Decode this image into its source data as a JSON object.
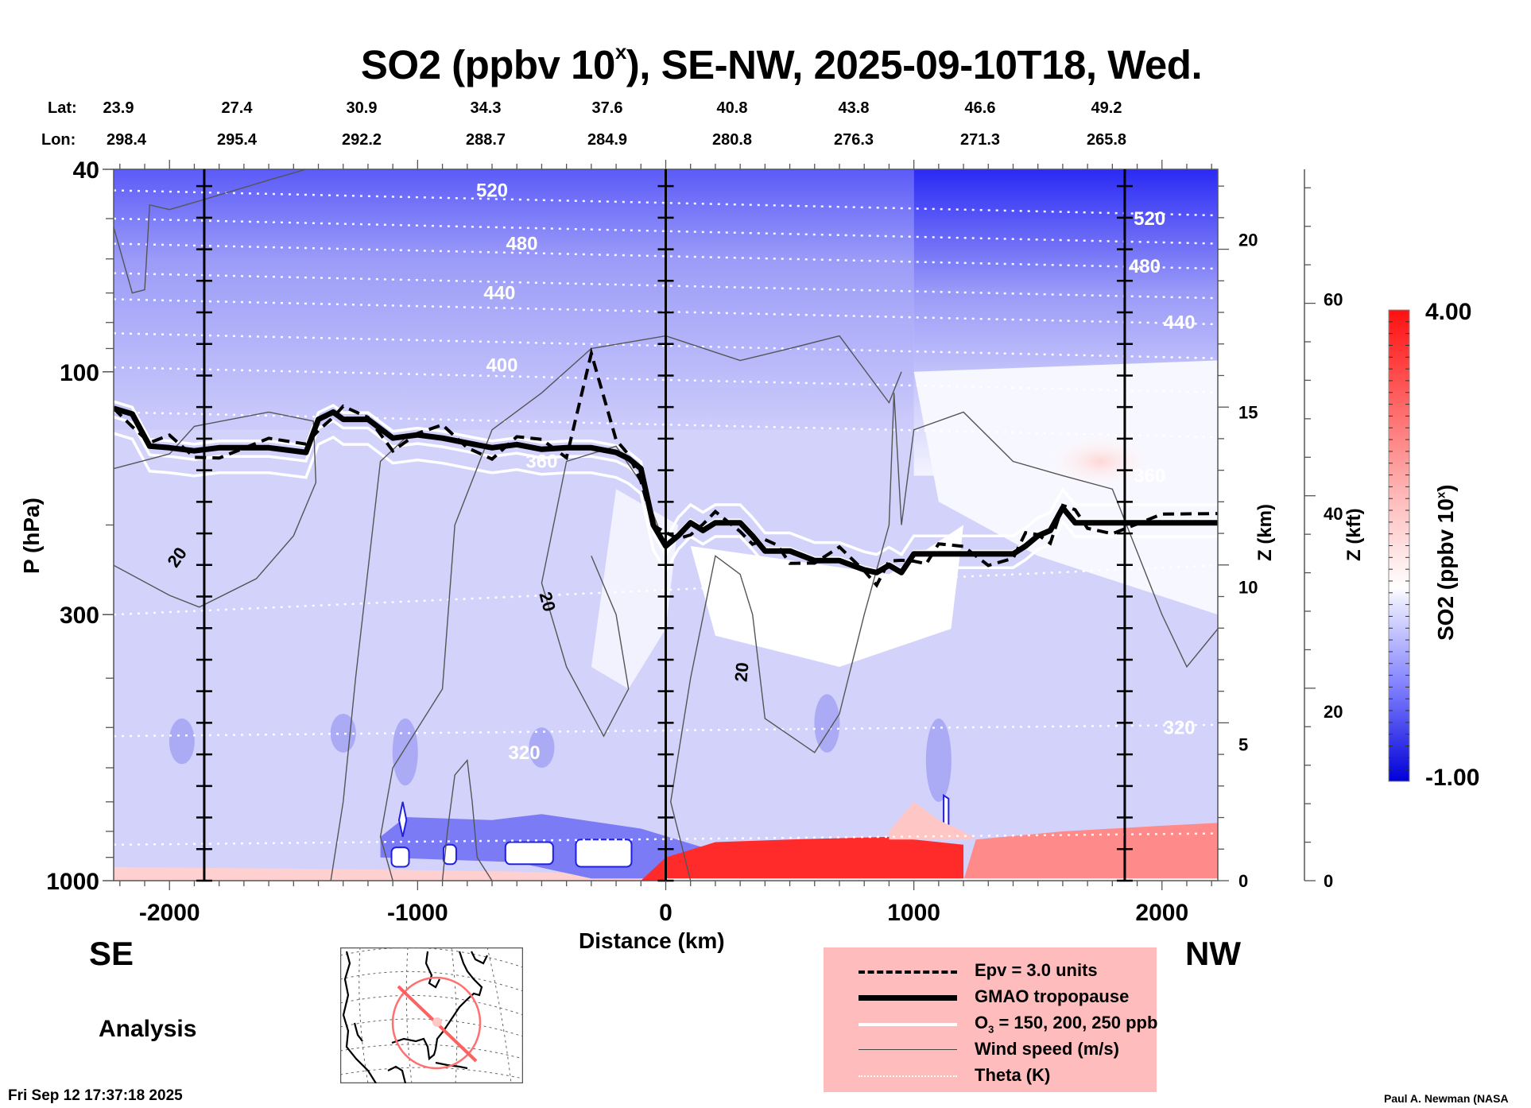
{
  "chart_data": {
    "type": "heatmap",
    "title": "SO2 (ppbv 10",
    "title_superscript": "x",
    "title_suffix": "), SE-NW, 2025-09-10T18, Wed.",
    "xlabel": "Distance (km)",
    "ylabel": "P (hPa)",
    "ylabel_right_km": "Z (km)",
    "ylabel_right_kft": "Z (kft)",
    "xlim": [
      -2225,
      2225
    ],
    "ylim_hpa": [
      1000,
      40
    ],
    "y_scale": "log",
    "x_ticks": [
      -2000,
      -1000,
      0,
      1000,
      2000
    ],
    "x_tick_labels": [
      "-2000",
      "-1000",
      "0",
      "1000",
      "2000"
    ],
    "y_ticks_hpa": [
      40,
      100,
      300,
      1000
    ],
    "y_tick_labels_hpa": [
      "40",
      "100",
      "300",
      "1000"
    ],
    "z_km_ticks": [
      0,
      5,
      10,
      15,
      20
    ],
    "z_km_tick_labels": [
      "0",
      "5",
      "10",
      "15",
      "20"
    ],
    "z_km_approx_hpa": {
      "0": 1000,
      "5": 540,
      "10": 265,
      "15": 120,
      "20": 55
    },
    "z_kft_ticks": [
      0,
      20,
      40,
      60
    ],
    "z_kft_tick_labels": [
      "0",
      "20",
      "40",
      "60"
    ],
    "z_kft_approx_hpa": {
      "0": 1000,
      "20": 465,
      "40": 190,
      "60": 72
    },
    "vertical_markers_km": [
      -1860,
      0,
      1850
    ],
    "lat_lon_header": {
      "lat_label": "Lat:",
      "lon_label": "Lon:",
      "lat": [
        "23.9",
        "27.4",
        "30.9",
        "34.3",
        "37.6",
        "40.8",
        "43.8",
        "46.6",
        "49.2"
      ],
      "lon": [
        "298.4",
        "295.4",
        "292.2",
        "288.7",
        "284.9",
        "280.8",
        "276.3",
        "271.3",
        "265.8"
      ]
    },
    "colorbar": {
      "label": "SO2 (ppbv 10",
      "label_superscript": "x",
      "label_suffix": ")",
      "min": -1.0,
      "max": 4.0,
      "min_label": "-1.00",
      "max_label": "4.00",
      "low_color": "#0000d8",
      "mid_color": "#ffffff",
      "high_color": "#ff0a0a",
      "levels": 40
    },
    "theta_labels_K": [
      {
        "value": "520",
        "x_km": -700,
        "p_hpa": 44
      },
      {
        "value": "480",
        "x_km": -580,
        "p_hpa": 56
      },
      {
        "value": "440",
        "x_km": -670,
        "p_hpa": 70
      },
      {
        "value": "400",
        "x_km": -660,
        "p_hpa": 97
      },
      {
        "value": "360",
        "x_km": -500,
        "p_hpa": 150
      },
      {
        "value": "320",
        "x_km": -570,
        "p_hpa": 560
      },
      {
        "value": "520",
        "x_km": 1950,
        "p_hpa": 50
      },
      {
        "value": "480",
        "x_km": 1930,
        "p_hpa": 62
      },
      {
        "value": "440",
        "x_km": 2070,
        "p_hpa": 80
      },
      {
        "value": "360",
        "x_km": 1950,
        "p_hpa": 160
      },
      {
        "value": "320",
        "x_km": 2070,
        "p_hpa": 500
      }
    ],
    "theta_levels_hpa_left": [
      44,
      50,
      56,
      64,
      72,
      84,
      98,
      120,
      300,
      520,
      850
    ],
    "wind_labels_ms": [
      {
        "value": "20",
        "x_km": -1950,
        "p_hpa": 235
      },
      {
        "value": "20",
        "x_km": -500,
        "p_hpa": 285
      },
      {
        "value": "20",
        "x_km": 330,
        "p_hpa": 390
      }
    ],
    "tropopause_hpa": {
      "x_km": [
        -2225,
        -2150,
        -2080,
        -2000,
        -1900,
        -1800,
        -1600,
        -1450,
        -1400,
        -1340,
        -1300,
        -1200,
        -1100,
        -1000,
        -900,
        -800,
        -700,
        -600,
        -500,
        -400,
        -300,
        -200,
        -150,
        -100,
        -50,
        0,
        50,
        100,
        150,
        200,
        300,
        350,
        400,
        450,
        500,
        600,
        700,
        800,
        850,
        900,
        950,
        1000,
        1050,
        1100,
        1200,
        1300,
        1400,
        1450,
        1500,
        1550,
        1600,
        1650,
        1700,
        1800,
        2000,
        2225
      ],
      "p_hpa": [
        118,
        121,
        140,
        141,
        143,
        141,
        141,
        144,
        124,
        120,
        124,
        124,
        135,
        133,
        135,
        138,
        141,
        139,
        142,
        141,
        141,
        144,
        148,
        155,
        200,
        220,
        210,
        198,
        205,
        198,
        198,
        210,
        225,
        225,
        225,
        235,
        235,
        245,
        248,
        240,
        248,
        228,
        228,
        228,
        228,
        228,
        228,
        220,
        210,
        205,
        185,
        198,
        198,
        198,
        198,
        198
      ]
    },
    "epv_note": "Epv = 3.0 units dashed contour follows tropopause with spikes near -300 km (to ~90 hPa)",
    "so2_features": [
      {
        "desc": "strong positive (red) near surface",
        "x_km_range": [
          0,
          1200
        ],
        "p_hpa_range": [
          820,
          1000
        ],
        "value": 4.0
      },
      {
        "desc": "moderate positive near surface",
        "x_km_range": [
          1250,
          2225
        ],
        "p_hpa_range": [
          770,
          1000
        ],
        "value": 2.0
      },
      {
        "desc": "weak positive boundary layer",
        "x_km_range": [
          -2225,
          -100
        ],
        "p_hpa_range": [
          950,
          1000
        ],
        "value": 1.0
      },
      {
        "desc": "strong negative (blue) lower troposphere",
        "x_km_range": [
          -1100,
          -50
        ],
        "p_hpa_range": [
          750,
          900
        ],
        "value": -1.0
      },
      {
        "desc": "stratosphere negative gradient",
        "x_km_range": [
          -2225,
          2225
        ],
        "p_hpa_range": [
          40,
          100
        ],
        "value": -0.8
      }
    ]
  },
  "labels": {
    "se": "SE",
    "nw": "NW",
    "analysis": "Analysis",
    "timestamp": "Fri Sep 12 17:37:18 2025",
    "credit": "Paul A. Newman (NASA"
  },
  "legend": {
    "items": [
      {
        "label": "Epv = 3.0 units",
        "style": "dashed"
      },
      {
        "label": "GMAO tropopause",
        "style": "thick"
      },
      {
        "label_main": "O",
        "label_sub": "3",
        "label_rest": " = 150, 200, 250 ppb",
        "style": "white"
      },
      {
        "label": "Wind speed (m/s)",
        "style": "thin"
      },
      {
        "label": "Theta (K)",
        "style": "dotted"
      }
    ],
    "background": "#ffbcbc"
  },
  "map_inset": {
    "region": "North America",
    "circle_color": "#ff6f6f",
    "cross_section_line": "SE-NW through eastern US"
  }
}
